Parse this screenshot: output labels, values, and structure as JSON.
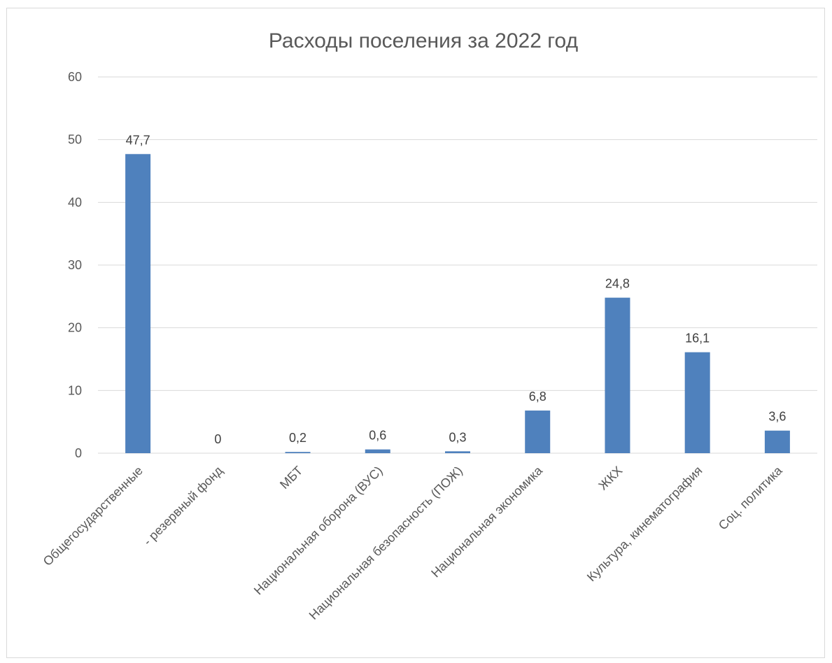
{
  "chart_data": {
    "type": "bar",
    "title": "Расходы поселения за 2022 год",
    "xlabel": "",
    "ylabel": "",
    "ylim": [
      0,
      60
    ],
    "yticks": [
      0,
      10,
      20,
      30,
      40,
      50,
      60
    ],
    "grid": true,
    "legend": "none",
    "categories": [
      "Общегосударственные",
      "- резервный фонд",
      "МБТ",
      "Национальная оборона (ВУС)",
      "Национальная безопасность (ПОЖ)",
      "Национальная экономика",
      "ЖКХ",
      "Культура, кинематография",
      "Соц. политика"
    ],
    "values": [
      47.7,
      0,
      0.2,
      0.6,
      0.3,
      6.8,
      24.8,
      16.1,
      3.6
    ],
    "data_labels": [
      "47,7",
      "0",
      "0,2",
      "0,6",
      "0,3",
      "6,8",
      "24,8",
      "16,1",
      "3,6"
    ],
    "tick_labels": [
      "0",
      "10",
      "20",
      "30",
      "40",
      "50",
      "60"
    ],
    "bar_color": "#4f81bd",
    "grid_color": "#d9d9d9",
    "text_color": "#595959"
  }
}
